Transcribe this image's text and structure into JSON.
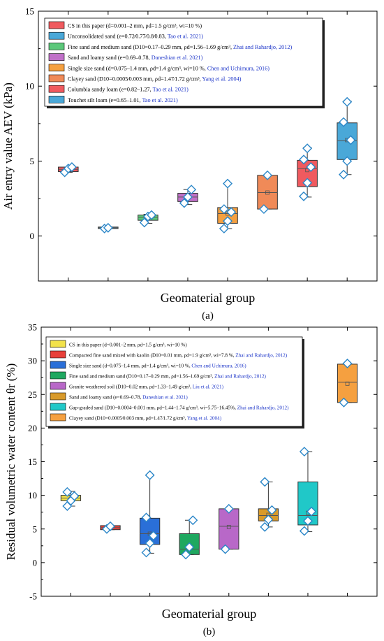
{
  "chart_data": [
    {
      "type": "box",
      "panel_label": "(a)",
      "xlabel": "Geomaterial group",
      "ylabel": "Air entry value AEV (kPa)",
      "ylim": [
        -3,
        15
      ],
      "yticks": [
        0,
        5,
        10,
        15
      ],
      "grid": false,
      "legend_placement": "top-left",
      "series": [
        {
          "legend": "CS in this paper (d=0.001–2 mm, ρd=1.5 g/cm3, wi=10 %)",
          "color": "#f05a5f",
          "box": {
            "q1": 4.3,
            "median": 4.45,
            "q3": 4.6,
            "whisker_low": 4.25,
            "whisker_high": 4.6,
            "mean": 4.45
          },
          "points": [
            4.25,
            4.5,
            4.6
          ]
        },
        {
          "legend": "Unconsolidated sand (e=0.72∕0.77∕0.8∕0.83, Tao et al. 2021)",
          "color": "#4aa8d8",
          "box": {
            "q1": 0.5,
            "median": 0.55,
            "q3": 0.6,
            "whisker_low": 0.5,
            "whisker_high": 0.6,
            "mean": 0.55
          },
          "points": [
            0.5,
            0.55
          ]
        },
        {
          "legend": "Fine sand and medium sand (D10=0.17–0.29 mm, ρd=1.56–1.69 g/cm3, Zhai and Rahardjo, 2012)",
          "color": "#5cc87a",
          "box": {
            "q1": 1.05,
            "median": 1.25,
            "q3": 1.4,
            "whisker_low": 0.85,
            "whisker_high": 1.45,
            "mean": 1.2
          },
          "points": [
            0.9,
            1.3,
            1.4
          ]
        },
        {
          "legend": "Sand and loamy sand (e=0.69–0.78, Daneshian et al. 2021)",
          "color": "#c070c8",
          "box": {
            "q1": 2.3,
            "median": 2.6,
            "q3": 2.85,
            "whisker_low": 2.1,
            "whisker_high": 3.1,
            "mean": 2.6
          },
          "points": [
            2.2,
            2.6,
            3.1
          ]
        },
        {
          "legend": "Single size sand (d=0.075–1.4 mm, ρd=1.4 g/cm3, wi=10 %, Chen and Uchimura, 2016)",
          "color": "#f5a040",
          "box": {
            "q1": 0.85,
            "median": 1.5,
            "q3": 1.9,
            "whisker_low": 0.5,
            "whisker_high": 3.5,
            "mean": 1.5
          },
          "points": [
            0.5,
            1.0,
            1.6,
            1.8,
            3.5
          ]
        },
        {
          "legend": "Clayey sand (D10=0.0005∕0.003 mm, ρd=1.47∕1.72 g/cm3, Yang et al. 2004)",
          "color": "#f08a58",
          "box": {
            "q1": 1.8,
            "median": 2.9,
            "q3": 4.05,
            "whisker_low": 1.8,
            "whisker_high": 4.05,
            "mean": 2.9
          },
          "points": [
            1.8,
            4.05
          ]
        },
        {
          "legend": "Columbia sandy loam (e=0.82–1.27, Tao et al. 2021)",
          "color": "#f05a5f",
          "box": {
            "q1": 3.3,
            "median": 4.5,
            "q3": 5.05,
            "whisker_low": 2.6,
            "whisker_high": 5.9,
            "mean": 4.4
          },
          "points": [
            2.65,
            3.55,
            4.6,
            5.1,
            5.85
          ]
        },
        {
          "legend": "Touchet silt loam (e=0.65–1.01, Tao et al. 2021)",
          "color": "#4aa8d8",
          "box": {
            "q1": 5.1,
            "median": 6.35,
            "q3": 7.55,
            "whisker_low": 4.1,
            "whisker_high": 9.0,
            "mean": 6.4
          },
          "points": [
            4.1,
            5.0,
            6.4,
            7.6,
            8.95
          ]
        }
      ]
    },
    {
      "type": "box",
      "panel_label": "(b)",
      "xlabel": "Geomaterial group",
      "ylabel": "Residual volumetric water content θr (%)",
      "ylim": [
        -5,
        35
      ],
      "yticks": [
        -5,
        0,
        5,
        10,
        15,
        20,
        25,
        30,
        35
      ],
      "grid": false,
      "legend_placement": "top-left",
      "series": [
        {
          "legend": "CS in this paper (d=0.001–2 mm, ρd=1.5 g/cm3, wi=10 %)",
          "color": "#f2e24a",
          "box": {
            "q1": 9.2,
            "median": 9.6,
            "q3": 10.0,
            "whisker_low": 8.4,
            "whisker_high": 10.6,
            "mean": 9.5
          },
          "points": [
            8.4,
            9.2,
            9.9,
            10.5
          ]
        },
        {
          "legend": "Compacted fine sand mixed with kaolin (D10=0.01 mm, ρd=1.9 g/cm3, wi=7.8 %, Zhai and Rahardjo, 2012)",
          "color": "#e8403a",
          "box": {
            "q1": 4.9,
            "median": 5.2,
            "q3": 5.5,
            "whisker_low": 4.9,
            "whisker_high": 5.5,
            "mean": 5.2
          },
          "points": [
            5.0,
            5.4
          ]
        },
        {
          "legend": "Single size sand (d=0.075–1.4 mm, ρd=1.4 g/cm3, wi=10 %, Chen and Uchimura, 2016)",
          "color": "#2a6fd8",
          "box": {
            "q1": 2.7,
            "median": 4.3,
            "q3": 6.6,
            "whisker_low": 1.4,
            "whisker_high": 13.0,
            "mean": 4.3
          },
          "points": [
            1.5,
            2.9,
            4.0,
            6.7,
            13.0
          ]
        },
        {
          "legend": "Fine sand and medium sand (D10=0.17–0.29 mm, ρd=1.56–1.69 g/cm3, Zhai and Rahardjo, 2012)",
          "color": "#1fa860",
          "box": {
            "q1": 1.2,
            "median": 2.0,
            "q3": 4.3,
            "whisker_low": 1.2,
            "whisker_high": 6.3,
            "mean": 2.3
          },
          "points": [
            1.2,
            2.3,
            6.3
          ]
        },
        {
          "legend": "Granite weathered soil (D10=0.02 mm, ρd=1.33–1.49 g/cm3, Liu et al. 2021)",
          "color": "#b868c8",
          "box": {
            "q1": 2.0,
            "median": 5.4,
            "q3": 8.0,
            "whisker_low": 2.0,
            "whisker_high": 8.0,
            "mean": 5.3
          },
          "points": [
            2.0,
            8.0
          ]
        },
        {
          "legend": "Sand and loamy sand (e=0.69–0.78, Daneshian et al. 2021)",
          "color": "#d89a2a",
          "box": {
            "q1": 6.2,
            "median": 7.0,
            "q3": 8.0,
            "whisker_low": 5.3,
            "whisker_high": 12.0,
            "mean": 7.1
          },
          "points": [
            5.3,
            6.4,
            7.8,
            12.0
          ]
        },
        {
          "legend": "Gap-graded sand (D10=0.0004–0.001 mm, ρd=1.44–1.74 g/cm3, wi=5.75–16.45%, Zhai and Rahardjo, 2012)",
          "color": "#20c8c8",
          "box": {
            "q1": 5.6,
            "median": 7.0,
            "q3": 12.0,
            "whisker_low": 4.6,
            "whisker_high": 16.5,
            "mean": 7.4
          },
          "points": [
            4.7,
            6.2,
            7.6,
            16.5
          ]
        },
        {
          "legend": "Clayey sand (D10=0.0005∕0.003 mm, ρd=1.47∕1.72 g/cm3, Yang et al. 2004)",
          "color": "#f5a040",
          "box": {
            "q1": 23.8,
            "median": 26.8,
            "q3": 29.5,
            "whisker_low": 23.8,
            "whisker_high": 29.5,
            "mean": 26.6
          },
          "points": [
            23.8,
            29.6
          ]
        }
      ]
    }
  ],
  "panels": [
    {
      "label": "(a)",
      "xlabel": "Geomaterial group",
      "ylabel": "Air entry value AEV (kPa)",
      "legend": [
        {
          "color": "#f05a5f",
          "pre": "CS in this paper (",
          "mid": "d=0.001–2 mm, ρd=1.5 g/cm³, wi=10 %)",
          "cite": ""
        },
        {
          "color": "#4aa8d8",
          "pre": "Unconsolidated sand (",
          "mid": "e=0.72∕0.77∕0.8∕0.83, ",
          "cite": "Tao et al. 2021)"
        },
        {
          "color": "#5cc87a",
          "pre": "Fine sand and medium sand (",
          "mid": "D10=0.17–0.29 mm, ρd=1.56–1.69 g/cm³, ",
          "cite": "Zhai and Rahardjo, 2012)"
        },
        {
          "color": "#c070c8",
          "pre": "Sand and loamy sand (",
          "mid": "e=0.69–0.78, ",
          "cite": "Daneshian et al. 2021)"
        },
        {
          "color": "#f5a040",
          "pre": "Single size sand (",
          "mid": "d=0.075–1.4 mm, ρd=1.4 g/cm³, wi=10 %, ",
          "cite": "Chen and Uchimura, 2016)"
        },
        {
          "color": "#f08a58",
          "pre": "Clayey sand (",
          "mid": "D10=0.0005∕0.003 mm, ρd=1.47∕1.72 g/cm³, ",
          "cite": "Yang et al. 2004)"
        },
        {
          "color": "#f05a5f",
          "pre": "Columbia sandy loam (",
          "mid": "e=0.82–1.27, ",
          "cite": "Tao et al. 2021)"
        },
        {
          "color": "#4aa8d8",
          "pre": "Touchet silt loam (",
          "mid": "e=0.65–1.01, ",
          "cite": "Tao et al. 2021)"
        }
      ]
    },
    {
      "label": "(b)",
      "xlabel": "Geomaterial group",
      "ylabel": "Residual volumetric water content θr (%)",
      "legend": [
        {
          "color": "#f2e24a",
          "pre": "CS in this paper (",
          "mid": "d=0.001–2 mm, ρd=1.5 g/cm³, wi=10 %)",
          "cite": ""
        },
        {
          "color": "#e8403a",
          "pre": "Compacted fine sand mixed with kaolin (",
          "mid": "D10=0.01 mm, ρd=1.9 g/cm³, wi=7.8 %, ",
          "cite": "Zhai and Rahardjo, 2012)"
        },
        {
          "color": "#2a6fd8",
          "pre": "Single size sand (",
          "mid": "d=0.075–1.4 mm, ρd=1.4 g/cm³, wi=10 %, ",
          "cite": "Chen and Uchimura, 2016)"
        },
        {
          "color": "#1fa860",
          "pre": "Fine sand and medium sand (",
          "mid": "D10=0.17–0.29 mm, ρd=1.56–1.69 g/cm³, ",
          "cite": "Zhai and Rahardjo, 2012)"
        },
        {
          "color": "#b868c8",
          "pre": "Granite weathered soil (",
          "mid": "D10=0.02 mm, ρd=1.33–1.49 g/cm³, ",
          "cite": "Liu et al. 2021)"
        },
        {
          "color": "#d89a2a",
          "pre": "Sand and loamy sand (",
          "mid": "e=0.69–0.78, ",
          "cite": "Daneshian et al. 2021)"
        },
        {
          "color": "#20c8c8",
          "pre": "Gap-graded sand (",
          "mid": "D10=0.0004–0.001 mm, ρd=1.44–1.74 g/cm³, wi=5.75–16.45%, ",
          "cite": "Zhai and Rahardjo, 2012)"
        },
        {
          "color": "#f5a040",
          "pre": "Clayey sand (",
          "mid": "D10=0.0005∕0.003 mm, ρd=1.47∕1.72 g/cm³, ",
          "cite": "Yang et al. 2004)"
        }
      ]
    }
  ],
  "style": {
    "cite_color": "#1a33c8",
    "point_stroke": "#2a86c8",
    "axis_color": "#000000"
  }
}
